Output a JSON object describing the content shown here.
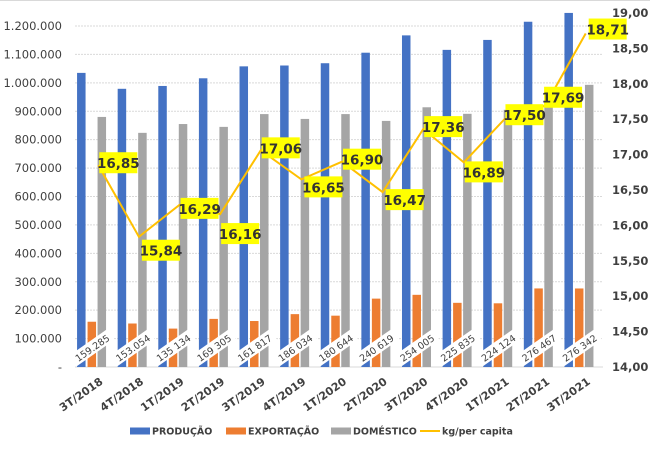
{
  "chart_data": {
    "type": "bar",
    "title": "",
    "xlabel": "",
    "ylabel": "",
    "y2label": "",
    "categories": [
      "3T/2018",
      "4T/2018",
      "1T/2019",
      "2T/2019",
      "3T/2019",
      "4T/2019",
      "1T/2020",
      "2T/2020",
      "3T/2020",
      "4T/2020",
      "1T/2021",
      "2T/2021",
      "3T/2021"
    ],
    "ylim": [
      0,
      1200000
    ],
    "y_ticks": [
      0,
      100000,
      200000,
      300000,
      400000,
      500000,
      600000,
      700000,
      800000,
      900000,
      1000000,
      1100000,
      1200000
    ],
    "y_tick_labels": [
      "-",
      "100.000",
      "200.000",
      "300.000",
      "400.000",
      "500.000",
      "600.000",
      "700.000",
      "800.000",
      "900.000",
      "1.000.000",
      "1.100.000",
      "1.200.000"
    ],
    "y2lim": [
      14.0,
      19.0
    ],
    "y2_ticks": [
      14.0,
      14.5,
      15.0,
      15.5,
      16.0,
      16.5,
      17.0,
      17.5,
      18.0,
      18.5,
      19.0
    ],
    "y2_tick_labels": [
      "14,00",
      "14,50",
      "15,00",
      "15,50",
      "16,00",
      "16,50",
      "17,00",
      "17,50",
      "18,00",
      "18,50",
      "19,00"
    ],
    "grid": true,
    "legend_position": "bottom",
    "series": [
      {
        "name": "PRODUÇÃO",
        "type": "bar",
        "axis": "left",
        "color": "#4472c4",
        "values": [
          1035000,
          979000,
          989000,
          1016000,
          1058000,
          1061000,
          1069000,
          1106000,
          1167000,
          1116000,
          1151000,
          1215000,
          1246000
        ]
      },
      {
        "name": "EXPORTAÇÃO",
        "type": "bar",
        "axis": "left",
        "color": "#ed7d31",
        "values": [
          159285,
          153054,
          135134,
          169305,
          161817,
          186034,
          180644,
          240619,
          254005,
          225835,
          224124,
          276467,
          276342
        ],
        "data_labels": [
          "159.285",
          "153.054",
          "135 134",
          "169 305",
          "161 817",
          "186 034",
          "180 644",
          "240 619",
          "254 005",
          "225 835",
          "224 124",
          "276 467",
          "276 342"
        ]
      },
      {
        "name": "DOMÉSTICO",
        "type": "bar",
        "axis": "left",
        "color": "#a5a5a5",
        "values": [
          880000,
          824000,
          855000,
          845000,
          890000,
          873000,
          890000,
          866000,
          914000,
          891000,
          905000,
          940000,
          993000
        ]
      },
      {
        "name": "kg/per capita",
        "type": "line",
        "axis": "right",
        "color": "#ffc000",
        "values": [
          16.85,
          15.84,
          16.29,
          16.16,
          17.06,
          16.65,
          16.9,
          16.47,
          17.36,
          16.89,
          17.5,
          17.69,
          18.71
        ],
        "data_labels": [
          "16,85",
          "15,84",
          "16,29",
          "16,16",
          "17,06",
          "16,65",
          "16,90",
          "16,47",
          "17,36",
          "16,89",
          "17,50",
          "17,69",
          "18,71"
        ]
      }
    ]
  },
  "colors": {
    "label_background": "#ffff00",
    "gridline": "#d9d9d9",
    "axis_text": "#404040"
  }
}
